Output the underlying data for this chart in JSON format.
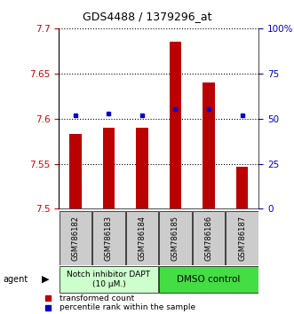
{
  "title": "GDS4488 / 1379296_at",
  "samples": [
    "GSM786182",
    "GSM786183",
    "GSM786184",
    "GSM786185",
    "GSM786186",
    "GSM786187"
  ],
  "bar_values": [
    7.583,
    7.59,
    7.59,
    7.685,
    7.64,
    7.547
  ],
  "percentile_values": [
    52,
    53,
    52,
    55,
    55,
    52
  ],
  "bar_base": 7.5,
  "ylim_left": [
    7.5,
    7.7
  ],
  "ylim_right": [
    0,
    100
  ],
  "yticks_left": [
    7.5,
    7.55,
    7.6,
    7.65,
    7.7
  ],
  "yticks_right": [
    0,
    25,
    50,
    75,
    100
  ],
  "ytick_labels_left": [
    "7.5",
    "7.55",
    "7.6",
    "7.65",
    "7.7"
  ],
  "ytick_labels_right": [
    "0",
    "25",
    "50",
    "75",
    "100%"
  ],
  "bar_color": "#bb0000",
  "dot_color": "#0000cc",
  "group1_label": "Notch inhibitor DAPT\n(10 μM.)",
  "group2_label": "DMSO control",
  "group1_color": "#ccffcc",
  "group2_color": "#44dd44",
  "agent_label": "agent",
  "legend_bar_label": "transformed count",
  "legend_dot_label": "percentile rank within the sample",
  "grid_color": "#000000",
  "left_tick_color": "#cc0000",
  "right_tick_color": "#0000cc",
  "title_color": "#000000",
  "fig_width": 3.31,
  "fig_height": 3.54,
  "dpi": 100
}
